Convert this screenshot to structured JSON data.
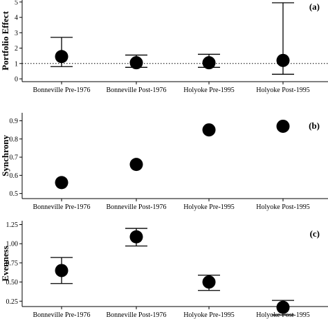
{
  "chart_data": [
    {
      "type": "scatter",
      "panel_label": "(a)",
      "ylabel": "Portfolio Effect",
      "categories": [
        "Bonneville Pre-1976",
        "Bonneville Post-1976",
        "Holyoke Pre-1995",
        "Holyoke Post-1995"
      ],
      "values": [
        1.45,
        1.05,
        1.05,
        1.2
      ],
      "error_low": [
        0.8,
        0.75,
        0.75,
        0.3
      ],
      "error_high": [
        2.7,
        1.55,
        1.6,
        4.95
      ],
      "reference_line": 1,
      "yticks": [
        0,
        1,
        2,
        3,
        4,
        5
      ],
      "ylim": [
        0,
        5
      ],
      "grid": false
    },
    {
      "type": "scatter",
      "panel_label": "(b)",
      "ylabel": "Synchrony",
      "categories": [
        "Bonneville Pre-1976",
        "Bonneville Post-1976",
        "Holyoke Pre-1995",
        "Holyoke Post-1995"
      ],
      "values": [
        0.56,
        0.66,
        0.85,
        0.87
      ],
      "yticks": [
        "0.5",
        "0.6",
        "0.7",
        "0.8",
        "0.9"
      ],
      "ylim": [
        0.5,
        0.9
      ],
      "grid": false
    },
    {
      "type": "scatter",
      "panel_label": "(c)",
      "ylabel": "Evenness",
      "categories": [
        "Bonneville Pre-1976",
        "Bonneville Post-1976",
        "Holyoke Pre-1995",
        "Holyoke Post-1995"
      ],
      "values": [
        0.65,
        1.09,
        0.5,
        0.17
      ],
      "error_low": [
        0.48,
        0.97,
        0.39,
        0.07
      ],
      "error_high": [
        0.82,
        1.2,
        0.59,
        0.26
      ],
      "yticks": [
        "0.25",
        "0.50",
        "0.75",
        "1.00",
        "1.25"
      ],
      "ylim": [
        0.25,
        1.25
      ],
      "grid": false
    }
  ]
}
